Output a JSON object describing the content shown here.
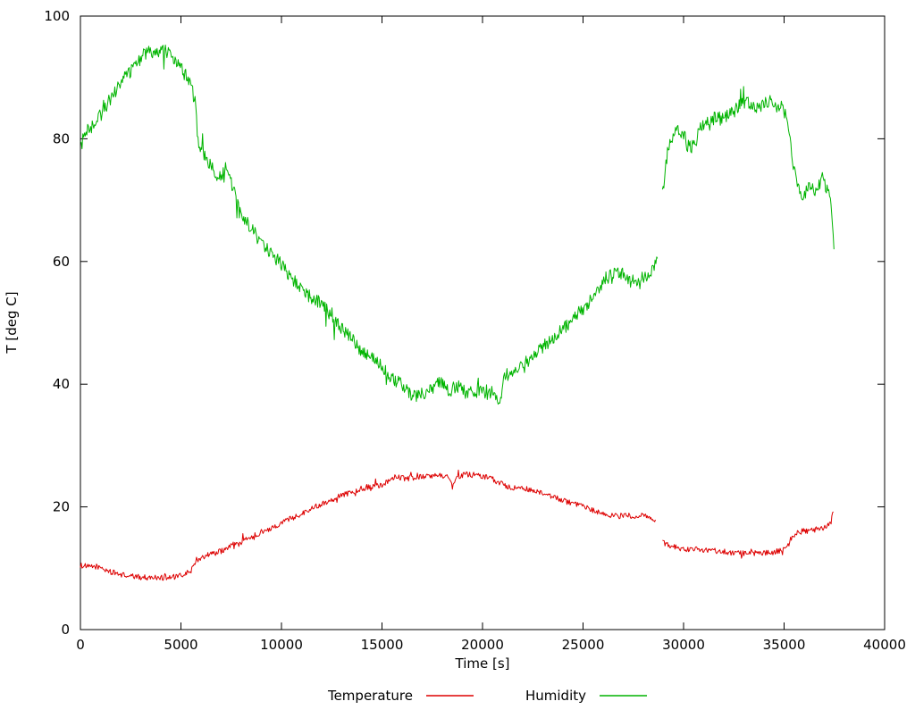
{
  "chart_data": {
    "type": "line",
    "title": "",
    "xlabel": "Time [s]",
    "ylabel": "T [deg C]",
    "xlim": [
      0,
      40000
    ],
    "ylim": [
      0,
      100
    ],
    "xticks": [
      0,
      5000,
      10000,
      15000,
      20000,
      25000,
      30000,
      35000,
      40000
    ],
    "yticks": [
      0,
      20,
      40,
      60,
      80,
      100
    ],
    "grid": false,
    "legend_position": "bottom-center",
    "series": [
      {
        "name": "Temperature",
        "color": "#dd0000",
        "noise": 0.45,
        "segments": [
          [
            [
              0,
              10.5
            ],
            [
              400,
              10.2
            ],
            [
              800,
              10.3
            ],
            [
              1200,
              9.8
            ],
            [
              1600,
              9.3
            ],
            [
              2000,
              9.0
            ],
            [
              2400,
              8.7
            ],
            [
              2800,
              8.6
            ],
            [
              3200,
              8.5
            ],
            [
              3600,
              8.5
            ],
            [
              4000,
              8.5
            ],
            [
              4400,
              8.5
            ],
            [
              4800,
              8.6
            ],
            [
              5200,
              9.0
            ],
            [
              5500,
              9.6
            ],
            [
              5700,
              11.0
            ],
            [
              6000,
              11.8
            ],
            [
              6300,
              12.2
            ],
            [
              6600,
              12.4
            ],
            [
              7000,
              12.8
            ],
            [
              7400,
              13.4
            ],
            [
              7600,
              14.1
            ],
            [
              7800,
              13.8
            ],
            [
              8200,
              14.6
            ],
            [
              8600,
              15.2
            ],
            [
              9000,
              15.9
            ],
            [
              9400,
              16.4
            ],
            [
              9800,
              17.1
            ],
            [
              10200,
              17.7
            ],
            [
              10600,
              18.3
            ],
            [
              11000,
              18.9
            ],
            [
              11400,
              19.6
            ],
            [
              11800,
              20.2
            ],
            [
              12200,
              20.8
            ],
            [
              12600,
              21.3
            ],
            [
              13000,
              21.9
            ],
            [
              13400,
              22.3
            ],
            [
              13800,
              22.8
            ],
            [
              14200,
              23.2
            ],
            [
              14600,
              23.4
            ],
            [
              15000,
              23.6
            ],
            [
              15400,
              24.3
            ],
            [
              15800,
              24.9
            ],
            [
              16200,
              24.6
            ],
            [
              16600,
              24.8
            ],
            [
              17000,
              25.0
            ],
            [
              17400,
              24.9
            ],
            [
              17800,
              25.2
            ],
            [
              18200,
              25.0
            ],
            [
              18500,
              23.8
            ],
            [
              18800,
              24.9
            ],
            [
              19200,
              25.3
            ],
            [
              19600,
              25.2
            ],
            [
              20000,
              25.0
            ],
            [
              20400,
              24.7
            ],
            [
              20800,
              24.0
            ],
            [
              21200,
              23.4
            ],
            [
              21600,
              23.1
            ],
            [
              22000,
              23.0
            ],
            [
              22400,
              22.8
            ],
            [
              22800,
              22.3
            ],
            [
              23200,
              21.9
            ],
            [
              23600,
              21.5
            ],
            [
              24000,
              21.1
            ],
            [
              24400,
              20.6
            ],
            [
              24800,
              20.2
            ],
            [
              25200,
              19.8
            ],
            [
              25600,
              19.3
            ],
            [
              26000,
              18.9
            ],
            [
              26400,
              18.6
            ],
            [
              26800,
              18.5
            ],
            [
              27200,
              18.6
            ],
            [
              27600,
              18.5
            ],
            [
              28000,
              18.5
            ],
            [
              28300,
              18.3
            ],
            [
              28600,
              17.9
            ]
          ],
          [
            [
              28950,
              14.3
            ],
            [
              29200,
              13.8
            ],
            [
              29500,
              13.5
            ],
            [
              29800,
              13.2
            ],
            [
              30100,
              13.1
            ],
            [
              30400,
              13.0
            ],
            [
              30700,
              13.1
            ],
            [
              31000,
              13.0
            ],
            [
              31400,
              12.9
            ],
            [
              31800,
              12.8
            ],
            [
              32200,
              12.6
            ],
            [
              32600,
              12.5
            ],
            [
              33000,
              12.5
            ],
            [
              33400,
              12.4
            ],
            [
              33800,
              12.5
            ],
            [
              34200,
              12.5
            ],
            [
              34600,
              12.7
            ],
            [
              35000,
              13.0
            ],
            [
              35200,
              13.6
            ],
            [
              35400,
              15.3
            ],
            [
              35700,
              15.8
            ],
            [
              36000,
              16.1
            ],
            [
              36300,
              16.0
            ],
            [
              36600,
              16.4
            ],
            [
              36900,
              16.5
            ],
            [
              37100,
              16.6
            ],
            [
              37300,
              17.5
            ],
            [
              37450,
              19.2
            ]
          ]
        ]
      },
      {
        "name": "Humidity",
        "color": "#00b400",
        "noise": 1.1,
        "segments": [
          [
            [
              0,
              78.5
            ],
            [
              200,
              80.5
            ],
            [
              400,
              81.5
            ],
            [
              700,
              82.5
            ],
            [
              1000,
              84.0
            ],
            [
              1300,
              85.5
            ],
            [
              1600,
              87.0
            ],
            [
              1900,
              88.5
            ],
            [
              2200,
              90.0
            ],
            [
              2500,
              91.0
            ],
            [
              2800,
              92.5
            ],
            [
              3100,
              93.5
            ],
            [
              3400,
              94.0
            ],
            [
              3700,
              94.3
            ],
            [
              4000,
              94.5
            ],
            [
              4300,
              94.2
            ],
            [
              4600,
              93.5
            ],
            [
              4900,
              92.0
            ],
            [
              5200,
              90.5
            ],
            [
              5500,
              88.5
            ],
            [
              5700,
              86.0
            ],
            [
              5850,
              80.0
            ],
            [
              6000,
              78.0
            ],
            [
              6300,
              76.5
            ],
            [
              6600,
              75.0
            ],
            [
              6900,
              73.5
            ],
            [
              7100,
              74.5
            ],
            [
              7300,
              75.5
            ],
            [
              7500,
              73.0
            ],
            [
              7700,
              71.0
            ],
            [
              7900,
              68.0
            ],
            [
              8200,
              66.5
            ],
            [
              8500,
              65.5
            ],
            [
              8800,
              64.0
            ],
            [
              9100,
              63.0
            ],
            [
              9400,
              61.5
            ],
            [
              9700,
              60.5
            ],
            [
              10000,
              59.5
            ],
            [
              10300,
              58.0
            ],
            [
              10600,
              57.0
            ],
            [
              10900,
              56.0
            ],
            [
              11200,
              55.0
            ],
            [
              11500,
              54.0
            ],
            [
              11800,
              53.5
            ],
            [
              12100,
              52.5
            ],
            [
              12400,
              51.5
            ],
            [
              12700,
              50.0
            ],
            [
              13000,
              49.0
            ],
            [
              13300,
              48.0
            ],
            [
              13600,
              47.0
            ],
            [
              13900,
              45.5
            ],
            [
              14200,
              44.8
            ],
            [
              14500,
              44.2
            ],
            [
              14800,
              43.5
            ],
            [
              15100,
              42.5
            ],
            [
              15400,
              41.0
            ],
            [
              15700,
              40.5
            ],
            [
              16000,
              40.0
            ],
            [
              16300,
              38.8
            ],
            [
              16600,
              38.0
            ],
            [
              16900,
              38.2
            ],
            [
              17200,
              38.5
            ],
            [
              17500,
              39.5
            ],
            [
              17800,
              40.3
            ],
            [
              18100,
              39.8
            ],
            [
              18400,
              38.8
            ],
            [
              18700,
              39.8
            ],
            [
              19000,
              39.5
            ],
            [
              19300,
              38.5
            ],
            [
              19600,
              38.8
            ],
            [
              19900,
              39.3
            ],
            [
              20200,
              38.5
            ],
            [
              20500,
              37.8
            ],
            [
              20700,
              37.2
            ],
            [
              20900,
              38.0
            ],
            [
              21050,
              41.0
            ],
            [
              21300,
              41.8
            ],
            [
              21600,
              42.3
            ],
            [
              21900,
              43.0
            ],
            [
              22200,
              43.8
            ],
            [
              22500,
              44.5
            ],
            [
              22800,
              45.5
            ],
            [
              23100,
              46.3
            ],
            [
              23400,
              47.2
            ],
            [
              23700,
              48.0
            ],
            [
              24000,
              49.0
            ],
            [
              24300,
              50.0
            ],
            [
              24600,
              51.0
            ],
            [
              24900,
              52.0
            ],
            [
              25200,
              53.0
            ],
            [
              25500,
              54.3
            ],
            [
              25800,
              55.8
            ],
            [
              26100,
              57.2
            ],
            [
              26400,
              57.8
            ],
            [
              26700,
              58.2
            ],
            [
              27000,
              58.0
            ],
            [
              27200,
              56.8
            ],
            [
              27400,
              56.5
            ],
            [
              27600,
              57.0
            ],
            [
              27900,
              57.3
            ],
            [
              28200,
              57.6
            ],
            [
              28500,
              59.0
            ],
            [
              28700,
              60.5
            ]
          ],
          [
            [
              28950,
              71.0
            ],
            [
              29050,
              74.0
            ],
            [
              29200,
              77.5
            ],
            [
              29400,
              80.0
            ],
            [
              29600,
              81.0
            ],
            [
              29800,
              81.3
            ],
            [
              30000,
              80.8
            ],
            [
              30200,
              79.0
            ],
            [
              30400,
              78.5
            ],
            [
              30600,
              79.5
            ],
            [
              30800,
              81.5
            ],
            [
              31000,
              82.0
            ],
            [
              31300,
              82.8
            ],
            [
              31600,
              83.5
            ],
            [
              31900,
              83.2
            ],
            [
              32200,
              83.8
            ],
            [
              32500,
              84.5
            ],
            [
              32800,
              85.5
            ],
            [
              33100,
              86.0
            ],
            [
              33400,
              85.3
            ],
            [
              33700,
              85.2
            ],
            [
              34000,
              85.6
            ],
            [
              34300,
              86.0
            ],
            [
              34600,
              85.4
            ],
            [
              34900,
              85.0
            ],
            [
              35100,
              83.5
            ],
            [
              35300,
              79.5
            ],
            [
              35500,
              75.0
            ],
            [
              35700,
              72.0
            ],
            [
              35900,
              70.5
            ],
            [
              36100,
              71.5
            ],
            [
              36300,
              72.5
            ],
            [
              36500,
              71.0
            ],
            [
              36700,
              72.5
            ],
            [
              36900,
              73.5
            ],
            [
              37100,
              72.0
            ],
            [
              37300,
              70.0
            ],
            [
              37400,
              66.0
            ],
            [
              37480,
              62.0
            ]
          ]
        ]
      }
    ]
  }
}
